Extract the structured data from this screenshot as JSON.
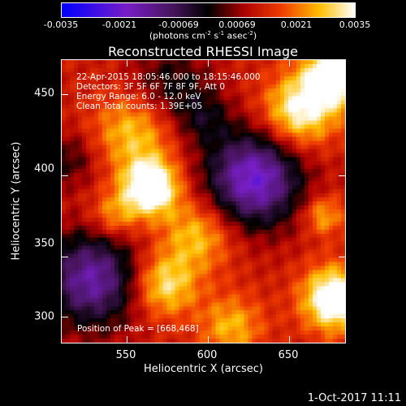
{
  "colorbar": {
    "tick_labels": [
      "-0.0035",
      "-0.0021",
      "-0.00069",
      "0.00069",
      "0.0021",
      "0.0035"
    ],
    "units_main": "(photons cm",
    "units_sup1": "-2",
    "units_mid1": " s",
    "units_sup2": "-1",
    "units_mid2": " asec",
    "units_sup3": "-2",
    "units_end": ")"
  },
  "plot": {
    "title": "Reconstructed RHESSI Image",
    "annotations": [
      "22-Apr-2015 18:05:46.000 to 18:15:46.000",
      "Detectors: 3F 5F 6F 7F 8F 9F, Att 0",
      "Energy Range: 6.0 - 12.0 keV",
      "Clean    Total counts: 1.39E+05"
    ],
    "peak_label": "Position of Peak = [668,468]",
    "x_ticks": [
      "550",
      "600",
      "650"
    ],
    "y_ticks": [
      "450",
      "400",
      "350",
      "300"
    ],
    "xlabel": "Heliocentric X (arcsec)",
    "ylabel": "Heliocentric Y (arcsec)"
  },
  "footer": {
    "date": "1-Oct-2017 11:11"
  }
}
